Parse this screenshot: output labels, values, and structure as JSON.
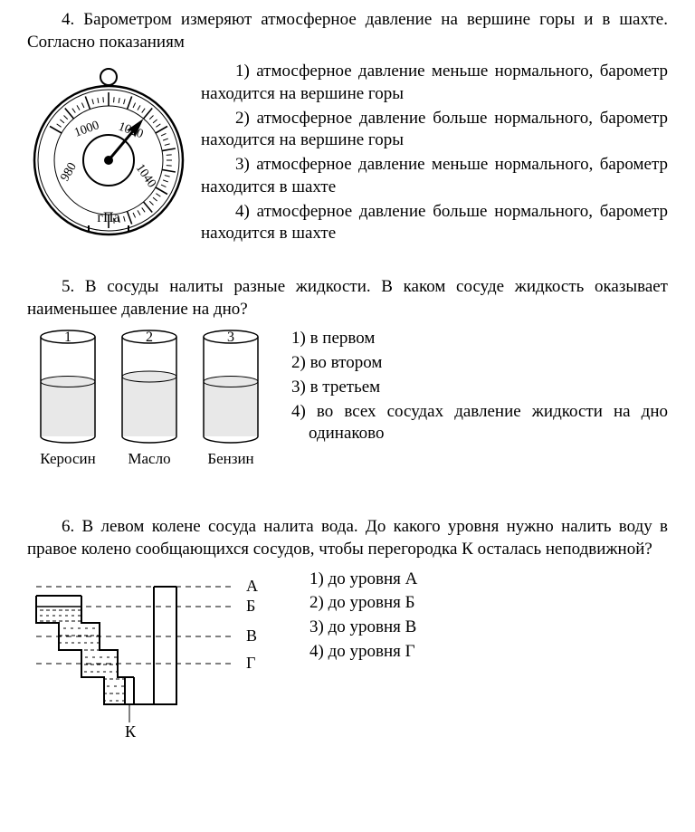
{
  "q4": {
    "prompt": "4. Барометром измеряют атмосферное давление на вершине горы и в шахте. Согласно показаниям",
    "answers": [
      "1) атмосферное давление меньше нормального, барометр находится на вершине горы",
      "2) атмосферное давление больше нормального, барометр находится на вершине горы",
      "3) атмосферное давление меньше нормального, барометр находится в шахте",
      "4) атмосферное давление больше нормального, барометр находится в шахте"
    ],
    "barometer": {
      "unit": "гПа",
      "ticks": [
        "980",
        "1000",
        "1020",
        "1040"
      ],
      "needle_angle_deg": 40,
      "stroke": "#000000",
      "bg": "#ffffff"
    }
  },
  "q5": {
    "prompt": "5. В сосуды налиты разные жидкости. В каком сосуде жидкость оказывает наименьшее давление на дно?",
    "answers": [
      "1) в первом",
      "2) во втором",
      "3) в третьем",
      "4) во всех сосудах давление жидкости на дно одинаково"
    ],
    "vessels": {
      "labels": [
        "1",
        "2",
        "3"
      ],
      "captions": [
        "Керосин",
        "Масло",
        "Бензин"
      ],
      "levels": [
        0.55,
        0.6,
        0.55
      ],
      "stroke": "#000000",
      "fill": "#e8e8e8"
    }
  },
  "q6": {
    "prompt": "6. В левом колене сосуда налита вода. До какого уровня нужно налить воду в правое колено сообщающихся сосудов, чтобы перегородка К осталась неподвижной?",
    "answers": [
      "1) до уровня А",
      "2) до уровня Б",
      "3) до уровня В",
      "4) до уровня Г"
    ],
    "diagram": {
      "levels": [
        "А",
        "Б",
        "В",
        "Г"
      ],
      "partition_label": "К",
      "stroke": "#000000"
    }
  }
}
